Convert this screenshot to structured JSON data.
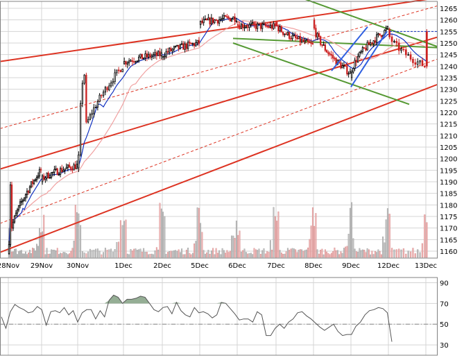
{
  "colors": {
    "background": "#ffffff",
    "grid": "#d4d4d4",
    "frame": "#808080",
    "candle_up": "#000000",
    "candle_down": "#cc2222",
    "ma_fast": "#1030c0",
    "ma_slow": "#f0a0a0",
    "channel_red": "#dd3322",
    "channel_green": "#559933",
    "trend_blue": "#3060e0",
    "volume_grey": "#c0c0c0",
    "volume_pink": "#f0b4b4",
    "oscillator_line": "#555555",
    "oscillator_fill": "#7a9a7a",
    "mid_dashdot": "#888888",
    "last_price_dashed": "#1030c0"
  },
  "chart_data": [
    {
      "type": "candlestick",
      "subtype": "intraday price chart with trend channels, moving averages and volume",
      "title": "",
      "xlabel": "",
      "ylabel": "",
      "x_tick_labels": [
        "28Nov",
        "29Nov",
        "30Nov",
        "1Dec",
        "2Dec",
        "5Dec",
        "6Dec",
        "7Dec",
        "8Dec",
        "9Dec",
        "12Dec",
        "13Dec"
      ],
      "y_tick_labels": [
        "1160",
        "1165",
        "1170",
        "1175",
        "1180",
        "1185",
        "1190",
        "1195",
        "1200",
        "1205",
        "1210",
        "1215",
        "1220",
        "1225",
        "1230",
        "1235",
        "1240",
        "1245",
        "1250",
        "1255",
        "1260",
        "1265"
      ],
      "ylim": [
        1157,
        1268
      ],
      "y_axis_side": "right",
      "grid": true,
      "last_price": 1255,
      "session_closes_approx": [
        {
          "session": "28Nov",
          "open": 1159,
          "close": 1195
        },
        {
          "session": "29Nov",
          "open": 1190,
          "close": 1197
        },
        {
          "session": "30Nov",
          "open": 1196,
          "close": 1240
        },
        {
          "session": "1Dec",
          "open": 1241,
          "close": 1245
        },
        {
          "session": "2Dec",
          "open": 1244,
          "close": 1250
        },
        {
          "session": "5Dec",
          "open": 1258,
          "close": 1261
        },
        {
          "session": "6Dec",
          "open": 1258,
          "close": 1257
        },
        {
          "session": "7Dec",
          "open": 1259,
          "close": 1249
        },
        {
          "session": "8Dec",
          "open": 1260,
          "close": 1237
        },
        {
          "session": "9Dec",
          "open": 1235,
          "close": 1256
        },
        {
          "session": "12Dec",
          "open": 1256,
          "close": 1240
        }
      ],
      "indicators": [
        "fast moving average (blue)",
        "slow moving average (pink)",
        "volume bars (grey/pink)"
      ],
      "drawn_lines": [
        "red rising channel upper, middle and lower lines with dashed red quarter lines",
        "green falling channel from 6Dec to 12Dec",
        "blue short-term trend lines on 9Dec",
        "blue dashed last-price line"
      ]
    },
    {
      "type": "line",
      "subtype": "oscillator",
      "title": "",
      "y_tick_labels": [
        "30",
        "50",
        "70",
        "90"
      ],
      "ylim": [
        20,
        95
      ],
      "reference_lines": [
        70,
        50
      ],
      "grid": true,
      "series": [
        {
          "values": [
            57,
            46,
            62,
            69,
            66,
            64,
            61,
            62,
            67,
            64,
            49,
            62,
            63,
            61,
            66,
            59,
            63,
            52,
            61,
            64,
            64,
            55,
            63,
            57,
            73,
            78,
            76,
            70,
            74,
            74,
            75,
            77,
            76,
            70,
            64,
            62,
            66,
            67,
            60,
            71,
            63,
            59,
            57,
            66,
            61,
            62,
            60,
            56,
            59,
            71,
            70,
            65,
            60,
            54,
            55,
            55,
            52,
            62,
            59,
            39,
            39,
            46,
            50,
            46,
            52,
            55,
            61,
            62,
            58,
            55,
            51,
            47,
            44,
            47,
            50,
            43,
            39,
            40,
            40,
            48,
            52,
            59,
            63,
            64,
            66,
            65,
            61,
            33
          ]
        }
      ]
    }
  ]
}
